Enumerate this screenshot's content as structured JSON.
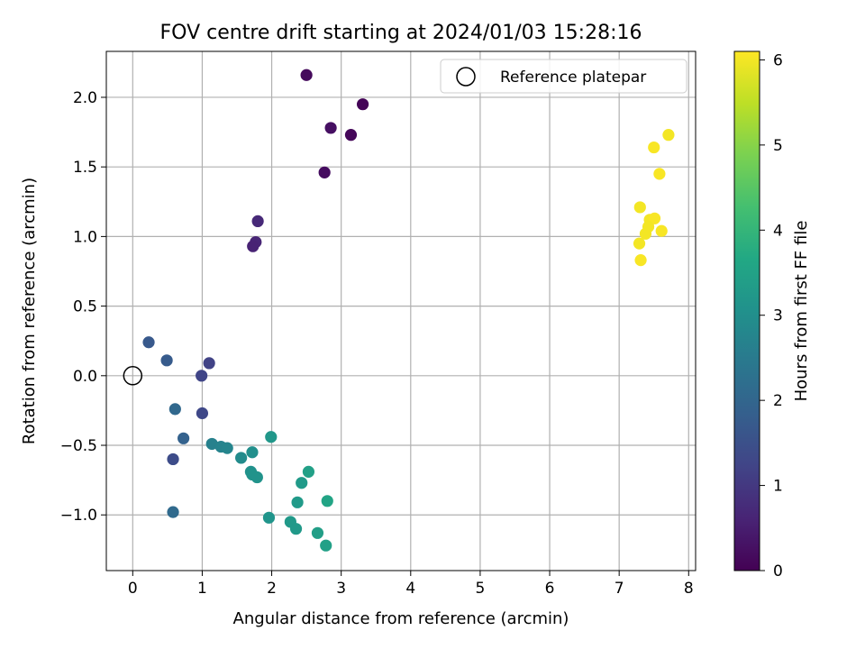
{
  "chart_data": {
    "type": "scatter",
    "title": "FOV centre drift starting at 2024/01/03 15:28:16",
    "xlabel": "Angular distance from reference (arcmin)",
    "ylabel": "Rotation from reference (arcmin)",
    "xlim": [
      -0.38,
      8.1
    ],
    "ylim": [
      -1.4,
      2.33
    ],
    "x_ticks": [
      0,
      1,
      2,
      3,
      4,
      5,
      6,
      7,
      8
    ],
    "y_ticks": [
      -1.0,
      -0.5,
      0.0,
      0.5,
      1.0,
      1.5,
      2.0
    ],
    "x_tick_labels": [
      "0",
      "1",
      "2",
      "3",
      "4",
      "5",
      "6",
      "7",
      "8"
    ],
    "y_tick_labels": [
      "−1.0",
      "−0.5",
      "0.0",
      "0.5",
      "1.0",
      "1.5",
      "2.0"
    ],
    "grid": true,
    "legend": {
      "position": "top-right",
      "entries": [
        {
          "label": "Reference platepar",
          "marker": "open-circle"
        }
      ]
    },
    "reference_point": {
      "x": 0,
      "y": 0
    },
    "colorbar": {
      "label": "Hours from first FF file",
      "colormap": "viridis",
      "range": [
        0,
        6.1
      ],
      "ticks": [
        0,
        1,
        2,
        3,
        4,
        5,
        6
      ],
      "tick_labels": [
        "0",
        "1",
        "2",
        "3",
        "4",
        "5",
        "6"
      ]
    },
    "series": [
      {
        "points": [
          {
            "x": 2.5,
            "y": 2.16,
            "c": 0.15
          },
          {
            "x": 3.31,
            "y": 1.95,
            "c": 0.05
          },
          {
            "x": 2.85,
            "y": 1.78,
            "c": 0.25
          },
          {
            "x": 3.14,
            "y": 1.73,
            "c": 0.1
          },
          {
            "x": 2.76,
            "y": 1.46,
            "c": 0.2
          },
          {
            "x": 1.8,
            "y": 1.11,
            "c": 0.7
          },
          {
            "x": 1.77,
            "y": 0.96,
            "c": 0.65
          },
          {
            "x": 1.73,
            "y": 0.93,
            "c": 0.6
          },
          {
            "x": 0.23,
            "y": 0.24,
            "c": 1.7
          },
          {
            "x": 0.49,
            "y": 0.11,
            "c": 1.75
          },
          {
            "x": 1.1,
            "y": 0.09,
            "c": 1.2
          },
          {
            "x": 0.99,
            "y": 0.0,
            "c": 1.25
          },
          {
            "x": 1.0,
            "y": -0.27,
            "c": 1.3
          },
          {
            "x": 0.61,
            "y": -0.24,
            "c": 2.05
          },
          {
            "x": 0.73,
            "y": -0.45,
            "c": 1.9
          },
          {
            "x": 0.58,
            "y": -0.6,
            "c": 1.4
          },
          {
            "x": 0.58,
            "y": -0.98,
            "c": 2.1
          },
          {
            "x": 1.14,
            "y": -0.49,
            "c": 2.65
          },
          {
            "x": 1.27,
            "y": -0.51,
            "c": 2.7
          },
          {
            "x": 1.36,
            "y": -0.52,
            "c": 2.75
          },
          {
            "x": 1.56,
            "y": -0.59,
            "c": 2.9
          },
          {
            "x": 1.72,
            "y": -0.55,
            "c": 3.0
          },
          {
            "x": 1.7,
            "y": -0.69,
            "c": 3.05
          },
          {
            "x": 1.72,
            "y": -0.71,
            "c": 3.1
          },
          {
            "x": 1.79,
            "y": -0.73,
            "c": 3.1
          },
          {
            "x": 1.99,
            "y": -0.44,
            "c": 3.2
          },
          {
            "x": 1.96,
            "y": -1.02,
            "c": 3.15
          },
          {
            "x": 2.27,
            "y": -1.05,
            "c": 3.25
          },
          {
            "x": 2.35,
            "y": -1.1,
            "c": 3.25
          },
          {
            "x": 2.43,
            "y": -0.77,
            "c": 3.3
          },
          {
            "x": 2.37,
            "y": -0.91,
            "c": 3.3
          },
          {
            "x": 2.53,
            "y": -0.69,
            "c": 3.45
          },
          {
            "x": 2.66,
            "y": -1.13,
            "c": 3.4
          },
          {
            "x": 2.78,
            "y": -1.22,
            "c": 3.45
          },
          {
            "x": 2.8,
            "y": -0.9,
            "c": 3.55
          },
          {
            "x": 7.3,
            "y": 1.21,
            "c": 6.0
          },
          {
            "x": 7.71,
            "y": 1.73,
            "c": 6.0
          },
          {
            "x": 7.5,
            "y": 1.64,
            "c": 6.05
          },
          {
            "x": 7.58,
            "y": 1.45,
            "c": 6.05
          },
          {
            "x": 7.44,
            "y": 1.12,
            "c": 6.0
          },
          {
            "x": 7.51,
            "y": 1.13,
            "c": 6.05
          },
          {
            "x": 7.42,
            "y": 1.07,
            "c": 6.0
          },
          {
            "x": 7.38,
            "y": 1.02,
            "c": 6.0
          },
          {
            "x": 7.61,
            "y": 1.04,
            "c": 6.05
          },
          {
            "x": 7.29,
            "y": 0.95,
            "c": 6.0
          },
          {
            "x": 7.31,
            "y": 0.83,
            "c": 6.05
          }
        ]
      }
    ]
  }
}
